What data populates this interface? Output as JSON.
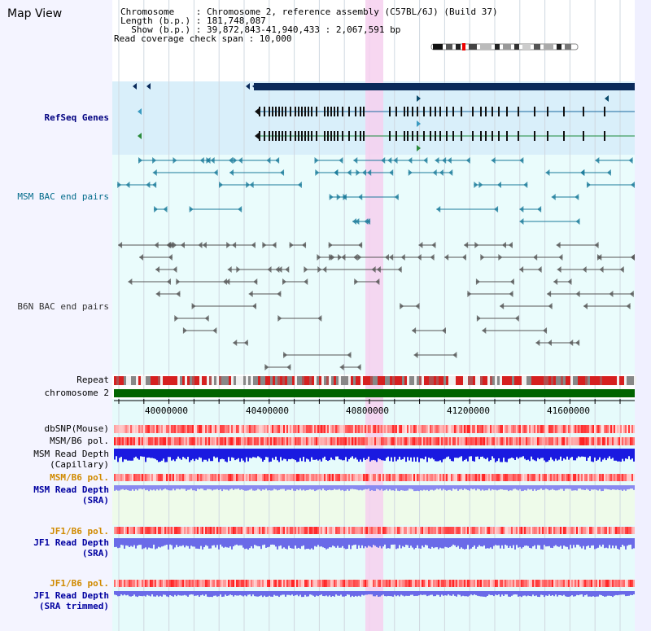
{
  "page": {
    "title": "Map View"
  },
  "header": {
    "line1": "Chromosome    : Chromosome 2, reference assembly (C57BL/6J) (Build 37)",
    "line2": "Length (b.p.) : 181,748,087",
    "line3": "  Show (b.p.) : 39,872,843-41,940,433 : 2,067,591 bp",
    "line4": "Read coverage check span : 10,000"
  },
  "tracks": {
    "refseq": "RefSeq Genes",
    "msm_bac": "MSM BAC end pairs",
    "b6n_bac": "B6N BAC end pairs",
    "repeat": "Repeat",
    "chromosome": "chromosome 2",
    "dbsnp": "dbSNP(Mouse)",
    "msm_b6_pol_1": "MSM/B6 pol.",
    "msm_read_cap_1": "MSM Read Depth",
    "msm_read_cap_2": "(Capillary)",
    "msm_b6_pol_2": "MSM/B6 pol.",
    "msm_read_sra_1": "MSM Read Depth",
    "msm_read_sra_2": "(SRA)",
    "jf1_b6_pol_1": "JF1/B6 pol.",
    "jf1_read_sra_1": "JF1 Read Depth",
    "jf1_read_sra_2": "(SRA)",
    "jf1_b6_pol_2": "JF1/B6 pol.",
    "jf1_read_trim_1": "JF1 Read Depth",
    "jf1_read_trim_2": "(SRA trimmed)"
  },
  "ruler": {
    "ticks": [
      "40000000",
      "40400000",
      "40800000",
      "41200000",
      "41600000"
    ]
  },
  "colors": {
    "navy": "#000080",
    "teal": "#006a8a",
    "gray": "#333333",
    "orange": "#d08a00",
    "blue_label": "#0000a0",
    "chromosome_green": "#006400",
    "highlight_pink": "#f7d5f0",
    "refseq_bg": "#d9effa",
    "bac_bg": "#e8fbfb",
    "lower_bg": "#e6fbfb"
  }
}
